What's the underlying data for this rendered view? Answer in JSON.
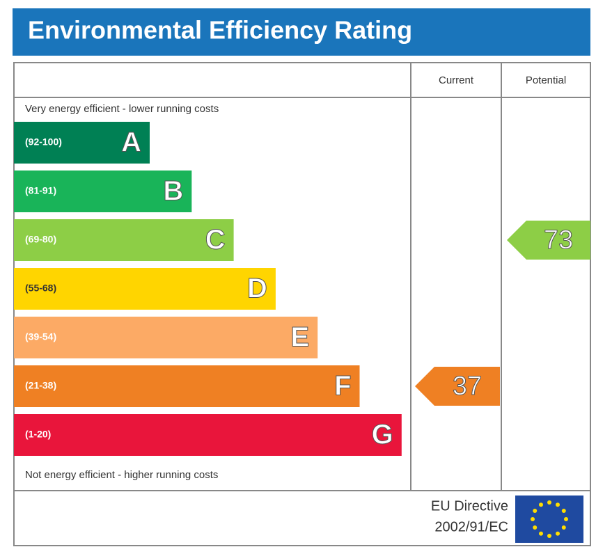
{
  "title": "Environmental Efficiency Rating",
  "columns": [
    "Current",
    "Potential"
  ],
  "top_note": "Very energy efficient - lower running costs",
  "bottom_note": "Not energy efficient - higher running costs",
  "bands": [
    {
      "range": "(92-100)",
      "letter": "A",
      "color": "#008054"
    },
    {
      "range": "(81-91)",
      "letter": "B",
      "color": "#19b459"
    },
    {
      "range": "(69-80)",
      "letter": "C",
      "color": "#8dce46"
    },
    {
      "range": "(55-68)",
      "letter": "D",
      "color": "#ffd500"
    },
    {
      "range": "(39-54)",
      "letter": "E",
      "color": "#fcaa65"
    },
    {
      "range": "(21-38)",
      "letter": "F",
      "color": "#ef8023"
    },
    {
      "range": "(1-20)",
      "letter": "G",
      "color": "#e9153b"
    }
  ],
  "ratings": [
    {
      "value": 37
    },
    {
      "value": 73
    }
  ],
  "footer": {
    "line1": "EU Directive",
    "line2": "2002/91/EC"
  }
}
